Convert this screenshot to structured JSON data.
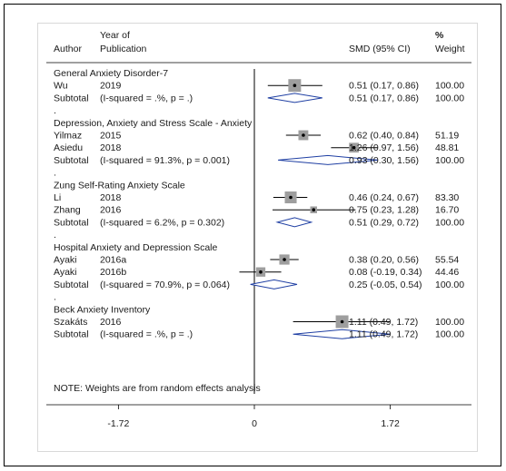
{
  "headers": {
    "author": "Author",
    "year_line1": "Year of",
    "year_line2": "Publication",
    "smd": "SMD (95% CI)",
    "weight_line1": "%",
    "weight_line2": "Weight"
  },
  "note": "NOTE: Weights are from random effects analysis",
  "colors": {
    "box": "#9e9e9e",
    "diamond": "#1f3fa3",
    "line": "#000000"
  },
  "chart_data": {
    "type": "forest",
    "xlim": [
      -1.72,
      1.72
    ],
    "ticks": [
      {
        "value": -1.72,
        "label": "-1.72"
      },
      {
        "value": 0,
        "label": "0"
      },
      {
        "value": 1.72,
        "label": "1.72"
      }
    ],
    "rows": [
      {
        "kind": "group",
        "label": "General Anxiety Disorder-7"
      },
      {
        "kind": "study",
        "author": "Wu",
        "year": "2019",
        "est": 0.51,
        "lo": 0.17,
        "hi": 0.86,
        "ci_text": "0.51 (0.17, 0.86)",
        "weight": "100.00",
        "weight_value": 100.0
      },
      {
        "kind": "subtotal",
        "label": "Subtotal",
        "stat": "(I-squared = .%, p = .)",
        "est": 0.51,
        "lo": 0.17,
        "hi": 0.86,
        "ci_text": "0.51 (0.17, 0.86)",
        "weight": "100.00"
      },
      {
        "kind": "dot",
        "label": "."
      },
      {
        "kind": "group",
        "label": "Depression, Anxiety and Stress Scale - Anxiety"
      },
      {
        "kind": "study",
        "author": "Yilmaz",
        "year": "2015",
        "est": 0.62,
        "lo": 0.4,
        "hi": 0.84,
        "ci_text": "0.62 (0.40, 0.84)",
        "weight": "51.19",
        "weight_value": 51.19
      },
      {
        "kind": "study",
        "author": "Asiedu",
        "year": "2018",
        "est": 1.26,
        "lo": 0.97,
        "hi": 1.56,
        "ci_text": "1.26 (0.97, 1.56)",
        "weight": "48.81",
        "weight_value": 48.81
      },
      {
        "kind": "subtotal",
        "label": "Subtotal",
        "stat": "(I-squared = 91.3%, p = 0.001)",
        "est": 0.93,
        "lo": 0.3,
        "hi": 1.56,
        "ci_text": "0.93 (0.30, 1.56)",
        "weight": "100.00"
      },
      {
        "kind": "dot",
        "label": "."
      },
      {
        "kind": "group",
        "label": "Zung Self-Rating Anxiety Scale"
      },
      {
        "kind": "study",
        "author": "Li",
        "year": "2018",
        "est": 0.46,
        "lo": 0.24,
        "hi": 0.67,
        "ci_text": "0.46 (0.24, 0.67)",
        "weight": "83.30",
        "weight_value": 83.3
      },
      {
        "kind": "study",
        "author": "Zhang",
        "year": "2016",
        "est": 0.75,
        "lo": 0.23,
        "hi": 1.28,
        "ci_text": "0.75 (0.23, 1.28)",
        "weight": "16.70",
        "weight_value": 16.7
      },
      {
        "kind": "subtotal",
        "label": "Subtotal",
        "stat": "(I-squared = 6.2%, p = 0.302)",
        "est": 0.51,
        "lo": 0.29,
        "hi": 0.72,
        "ci_text": "0.51 (0.29, 0.72)",
        "weight": "100.00"
      },
      {
        "kind": "dot",
        "label": "."
      },
      {
        "kind": "group",
        "label": "Hospital Anxiety and Depression Scale"
      },
      {
        "kind": "study",
        "author": "Ayaki",
        "year": "2016a",
        "est": 0.38,
        "lo": 0.2,
        "hi": 0.56,
        "ci_text": "0.38 (0.20, 0.56)",
        "weight": "55.54",
        "weight_value": 55.54
      },
      {
        "kind": "study",
        "author": "Ayaki",
        "year": "2016b",
        "est": 0.08,
        "lo": -0.19,
        "hi": 0.34,
        "ci_text": "0.08 (-0.19, 0.34)",
        "weight": "44.46",
        "weight_value": 44.46
      },
      {
        "kind": "subtotal",
        "label": "Subtotal",
        "stat": "(I-squared = 70.9%, p = 0.064)",
        "est": 0.25,
        "lo": -0.05,
        "hi": 0.54,
        "ci_text": "0.25 (-0.05, 0.54)",
        "weight": "100.00"
      },
      {
        "kind": "dot",
        "label": "."
      },
      {
        "kind": "group",
        "label": "Beck Anxiety Inventory"
      },
      {
        "kind": "study",
        "author": "Szakáts",
        "year": "2016",
        "est": 1.11,
        "lo": 0.49,
        "hi": 1.72,
        "ci_text": "1.11 (0.49, 1.72)",
        "weight": "100.00",
        "weight_value": 100.0
      },
      {
        "kind": "subtotal",
        "label": "Subtotal",
        "stat": "(I-squared = .%, p = .)",
        "est": 1.11,
        "lo": 0.49,
        "hi": 1.72,
        "ci_text": "1.11 (0.49, 1.72)",
        "weight": "100.00"
      }
    ]
  }
}
